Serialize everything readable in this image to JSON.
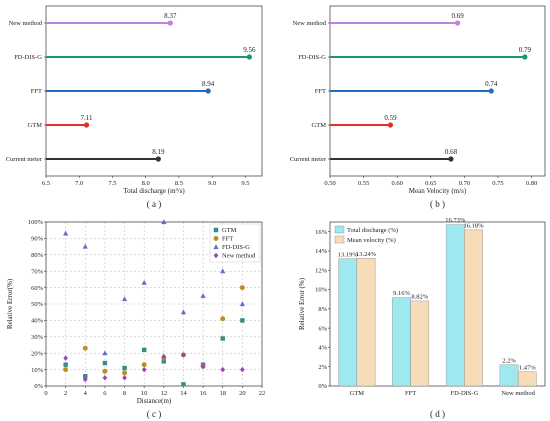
{
  "chart_data": [
    {
      "id": "a",
      "type": "lollipop",
      "panel_label": "( a )",
      "xlabel": "Total discharge (m³/s)",
      "xlim": [
        6.5,
        9.75
      ],
      "xticks": [
        6.5,
        7.0,
        7.5,
        8.0,
        8.5,
        9.0,
        9.5
      ],
      "categories": [
        "New method",
        "FD-DIS-G",
        "FFT",
        "GTM",
        "Current meter"
      ],
      "values": [
        8.37,
        9.56,
        8.94,
        7.11,
        8.19
      ],
      "value_labels": [
        "8.37",
        "9.56",
        "8.94",
        "7.11",
        "8.19"
      ],
      "colors": [
        "#c080e0",
        "#1a9a6a",
        "#1f6fc0",
        "#e03030",
        "#333333"
      ]
    },
    {
      "id": "b",
      "type": "lollipop",
      "panel_label": "( b )",
      "xlabel": "Mean Velocity (m/s)",
      "xlim": [
        0.5,
        0.82
      ],
      "xticks": [
        0.5,
        0.55,
        0.6,
        0.65,
        0.7,
        0.75,
        0.8
      ],
      "xtick_labels": [
        "0.50",
        "0.55",
        "0.60",
        "0.65",
        "0.70",
        "0.75",
        "0.80"
      ],
      "categories": [
        "New method",
        "FD-DIS-G",
        "FFT",
        "GTM",
        "Current meter"
      ],
      "values": [
        0.69,
        0.79,
        0.74,
        0.59,
        0.68
      ],
      "value_labels": [
        "0.69",
        "0.79",
        "0.74",
        "0.59",
        "0.68"
      ],
      "colors": [
        "#c080e0",
        "#1a9a6a",
        "#1f6fc0",
        "#e03030",
        "#333333"
      ]
    },
    {
      "id": "c",
      "type": "scatter",
      "panel_label": "( c )",
      "xlabel": "Distance(m)",
      "ylabel": "Relative Error(%)",
      "xlim": [
        0,
        22
      ],
      "ylim": [
        0,
        100
      ],
      "xticks": [
        0,
        2,
        4,
        6,
        8,
        10,
        12,
        14,
        16,
        18,
        20,
        22
      ],
      "yticks": [
        0,
        10,
        20,
        30,
        40,
        50,
        60,
        70,
        80,
        90,
        100
      ],
      "ytick_labels": [
        "0%",
        "10%",
        "20%",
        "30%",
        "40%",
        "50%",
        "60%",
        "70%",
        "80%",
        "90%",
        "100%"
      ],
      "series": [
        {
          "name": "GTM",
          "marker": "square",
          "color": "#3a8a8a",
          "x": [
            2,
            4,
            6,
            8,
            10,
            12,
            14,
            16,
            18,
            20
          ],
          "y": [
            13,
            6,
            14,
            11,
            22,
            15,
            1,
            13,
            29,
            40
          ]
        },
        {
          "name": "FFT",
          "marker": "circle",
          "color": "#b8901a",
          "x": [
            2,
            4,
            6,
            8,
            10,
            12,
            14,
            16,
            18,
            20
          ],
          "y": [
            10,
            23,
            9,
            8,
            13,
            17,
            19,
            12,
            41,
            60
          ]
        },
        {
          "name": "FD-DIS-G",
          "marker": "triangle",
          "color": "#6a6ac8",
          "x": [
            2,
            4,
            6,
            8,
            10,
            12,
            14,
            16,
            18,
            20
          ],
          "y": [
            93,
            85,
            20,
            53,
            63,
            100,
            45,
            55,
            70,
            50
          ]
        },
        {
          "name": "New method",
          "marker": "diamond",
          "color": "#a040c0",
          "x": [
            2,
            4,
            6,
            8,
            10,
            12,
            14,
            16,
            18,
            20
          ],
          "y": [
            17,
            4,
            5,
            5,
            10,
            18,
            19,
            12,
            10,
            10
          ]
        }
      ]
    },
    {
      "id": "d",
      "type": "bar",
      "panel_label": "( d )",
      "ylabel": "Relative Error (%)",
      "ylim": [
        0,
        17
      ],
      "yticks": [
        0,
        2,
        4,
        6,
        8,
        10,
        12,
        14,
        16
      ],
      "ytick_labels": [
        "0%",
        "2%",
        "4%",
        "6%",
        "8%",
        "10%",
        "12%",
        "14%",
        "16%"
      ],
      "categories": [
        "GTM",
        "FFT",
        "FD-DIS-G",
        "New method"
      ],
      "series": [
        {
          "name": "Total  discharge (%)",
          "color": "#9ee8f0",
          "values": [
            13.19,
            9.16,
            16.73,
            2.2
          ],
          "labels": [
            "13.19%",
            "9.16%",
            "16.73%",
            "2.2%"
          ]
        },
        {
          "name": "Mean velocity (%)",
          "color": "#f6dcb8",
          "values": [
            13.24,
            8.82,
            16.18,
            1.47
          ],
          "labels": [
            "13.24%",
            "8.82%",
            "16.18%",
            "1.47%"
          ]
        }
      ]
    }
  ]
}
